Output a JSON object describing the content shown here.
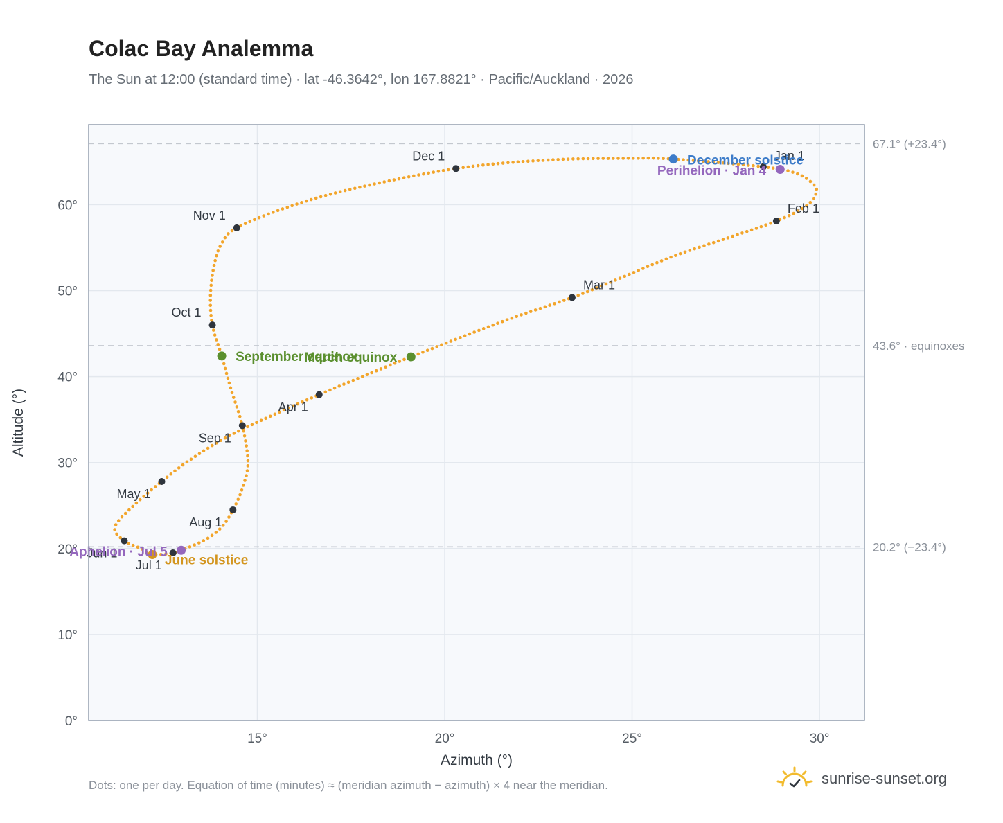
{
  "title": "Colac Bay Analemma",
  "subtitle": "The Sun at 12:00 (standard time) · lat -46.3642°, lon 167.8821° · Pacific/Auckland · 2026",
  "footnote": "Dots: one per day. Equation of time (minutes) ≈ (meridian azimuth − azimuth) × 4 near the meridian.",
  "brand": "sunrise-sunset.org",
  "colors": {
    "curve": "#f2a52b",
    "month_dot": "#2f353d",
    "equinox": "#5a8f2e",
    "june_solstice": "#d3951e",
    "december_solstice": "#3d7cc9",
    "apsis": "#9467bd",
    "grid": "#e3e8ee",
    "plot_bg": "#f7f9fc",
    "frame": "#9aa5b4",
    "ref_line": "#c3c8cf"
  },
  "chart_data": {
    "type": "scatter",
    "xlabel": "Azimuth (°)",
    "ylabel": "Altitude (°)",
    "xlim": [
      10.5,
      31.2
    ],
    "ylim": [
      0,
      69.3
    ],
    "xticks": [
      15,
      20,
      25,
      30
    ],
    "yticks": [
      0,
      10,
      20,
      30,
      40,
      50,
      60
    ],
    "x_tick_labels": [
      "15°",
      "20°",
      "25°",
      "30°"
    ],
    "y_tick_labels": [
      "0°",
      "10°",
      "20°",
      "30°",
      "40°",
      "50°",
      "60°"
    ],
    "grid": true,
    "reference_lines": [
      {
        "y": 67.1,
        "label": "67.1° (+23.4°)"
      },
      {
        "y": 43.6,
        "label": "43.6° · equinoxes"
      },
      {
        "y": 20.2,
        "label": "20.2° (−23.4°)"
      }
    ],
    "month_markers": [
      {
        "label": "Jan 1",
        "x": 28.5,
        "y": 64.4
      },
      {
        "label": "Feb 1",
        "x": 28.85,
        "y": 58.1
      },
      {
        "label": "Mar 1",
        "x": 23.4,
        "y": 49.2
      },
      {
        "label": "Apr 1",
        "x": 16.65,
        "y": 37.9
      },
      {
        "label": "May 1",
        "x": 12.45,
        "y": 27.8
      },
      {
        "label": "Jun 1",
        "x": 11.45,
        "y": 20.9
      },
      {
        "label": "Jul 1",
        "x": 12.75,
        "y": 19.5
      },
      {
        "label": "Aug 1",
        "x": 14.35,
        "y": 24.5
      },
      {
        "label": "Sep 1",
        "x": 14.6,
        "y": 34.3
      },
      {
        "label": "Oct 1",
        "x": 13.8,
        "y": 46.0
      },
      {
        "label": "Nov 1",
        "x": 14.45,
        "y": 57.3
      },
      {
        "label": "Dec 1",
        "x": 20.3,
        "y": 64.2
      }
    ],
    "events": [
      {
        "label": "March equinox",
        "x": 19.1,
        "y": 42.3,
        "color_key": "equinox"
      },
      {
        "label": "September equinox",
        "x": 14.05,
        "y": 42.4,
        "color_key": "equinox"
      },
      {
        "label": "June solstice",
        "x": 12.2,
        "y": 19.3,
        "color_key": "june_solstice"
      },
      {
        "label": "December solstice",
        "x": 26.1,
        "y": 65.3,
        "color_key": "december_solstice"
      },
      {
        "label": "Perihelion · Jan 4",
        "x": 28.95,
        "y": 64.1,
        "color_key": "apsis"
      },
      {
        "label": "Aphelion · Jul 5",
        "x": 12.97,
        "y": 19.8,
        "color_key": "apsis"
      }
    ],
    "series": [
      {
        "path": [
          [
            26.1,
            65.3
          ],
          [
            28.5,
            64.4
          ],
          [
            29.4,
            63.6
          ],
          [
            29.85,
            62.3
          ],
          [
            29.9,
            61.2
          ],
          [
            29.6,
            59.7
          ],
          [
            28.85,
            58.1
          ],
          [
            27.6,
            56.2
          ],
          [
            26.1,
            54.0
          ],
          [
            24.6,
            51.3
          ],
          [
            23.4,
            49.2
          ],
          [
            21.6,
            46.5
          ],
          [
            19.1,
            42.3
          ],
          [
            17.8,
            40.0
          ],
          [
            16.65,
            37.9
          ],
          [
            15.4,
            35.5
          ],
          [
            14.2,
            33.0
          ],
          [
            13.2,
            30.3
          ],
          [
            12.45,
            27.8
          ],
          [
            11.7,
            25.0
          ],
          [
            11.2,
            22.5
          ],
          [
            11.45,
            20.9
          ],
          [
            11.9,
            20.0
          ],
          [
            12.2,
            19.3
          ],
          [
            12.75,
            19.5
          ],
          [
            12.97,
            19.8
          ],
          [
            13.6,
            21.0
          ],
          [
            14.05,
            22.5
          ],
          [
            14.35,
            24.5
          ],
          [
            14.6,
            27.0
          ],
          [
            14.75,
            30.0
          ],
          [
            14.6,
            34.3
          ],
          [
            14.3,
            38.5
          ],
          [
            14.05,
            42.4
          ],
          [
            13.8,
            46.0
          ],
          [
            13.75,
            49.5
          ],
          [
            13.85,
            53.0
          ],
          [
            14.05,
            55.5
          ],
          [
            14.45,
            57.3
          ],
          [
            15.8,
            59.7
          ],
          [
            17.5,
            61.8
          ],
          [
            20.3,
            64.2
          ],
          [
            22.8,
            65.2
          ],
          [
            25.0,
            65.4
          ],
          [
            26.1,
            65.3
          ]
        ]
      }
    ]
  }
}
